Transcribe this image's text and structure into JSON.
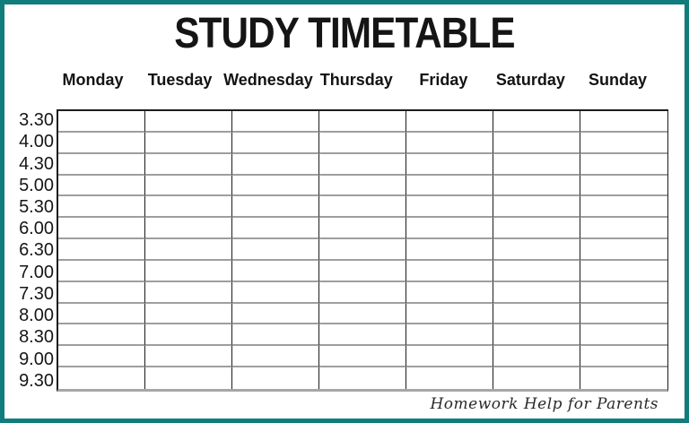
{
  "page": {
    "title": "STUDY TIMETABLE",
    "watermark": "Homework Help for Parents"
  },
  "timetable": {
    "days": [
      "Monday",
      "Tuesday",
      "Wednesday",
      "Thursday",
      "Friday",
      "Saturday",
      "Sunday"
    ],
    "times": [
      "3.30",
      "4.00",
      "4.30",
      "5.00",
      "5.30",
      "6.00",
      "6.30",
      "7.00",
      "7.30",
      "8.00",
      "8.30",
      "9.00",
      "9.30"
    ],
    "cells_state": "empty"
  },
  "colors": {
    "frame_border": "#117c7c",
    "grid_line_black": "#1c1c1c",
    "grid_line_gray": "#9e9e9e",
    "background": "#ffffff",
    "text": "#151515"
  }
}
